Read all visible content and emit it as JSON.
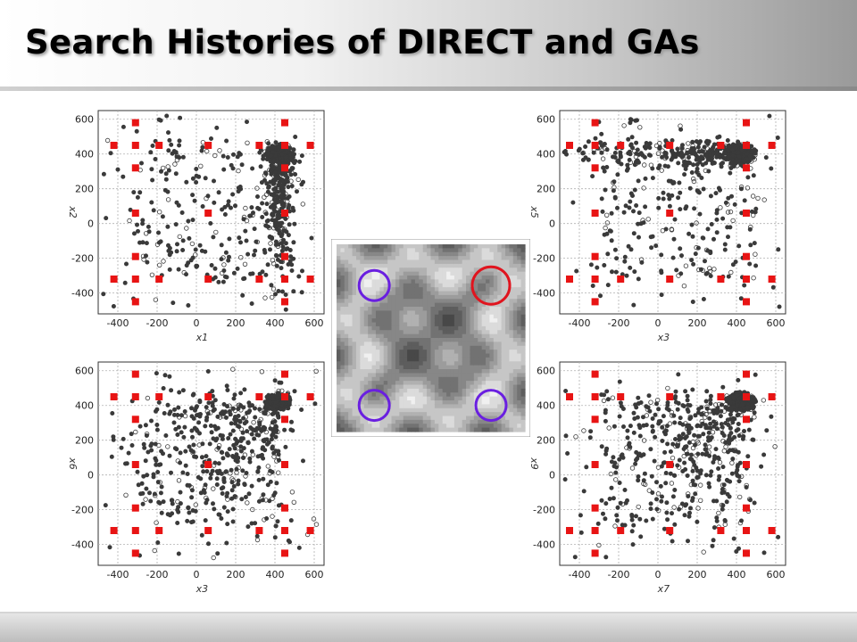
{
  "slide": {
    "title": "Search Histories of DIRECT and GAs"
  },
  "colors": {
    "direct_marker": "#e81414",
    "ga_marker": "#3a3a3a",
    "red_circle": "#e0141e",
    "blue_circle": "#6a1fe0"
  },
  "chart_data": [
    {
      "type": "scatter",
      "title": "",
      "xlabel": "x1",
      "ylabel": "x2",
      "xlim": [
        -500,
        650
      ],
      "ylim": [
        -520,
        650
      ],
      "xticks": [
        -400,
        -200,
        0,
        200,
        400,
        600
      ],
      "yticks": [
        -400,
        -200,
        0,
        200,
        400,
        600
      ],
      "grid": true,
      "direct_points": [
        [
          -420,
          450
        ],
        [
          -310,
          580
        ],
        [
          -310,
          450
        ],
        [
          -310,
          320
        ],
        [
          -310,
          60
        ],
        [
          -310,
          -190
        ],
        [
          -310,
          -320
        ],
        [
          -310,
          -450
        ],
        [
          -190,
          450
        ],
        [
          -190,
          -320
        ],
        [
          60,
          450
        ],
        [
          60,
          60
        ],
        [
          60,
          -320
        ],
        [
          320,
          450
        ],
        [
          320,
          -320
        ],
        [
          450,
          580
        ],
        [
          450,
          450
        ],
        [
          450,
          320
        ],
        [
          450,
          60
        ],
        [
          450,
          -190
        ],
        [
          450,
          -320
        ],
        [
          450,
          -450
        ],
        [
          580,
          450
        ],
        [
          580,
          -320
        ],
        [
          -420,
          -320
        ]
      ],
      "ga_cluster": {
        "center": [
          420,
          400
        ],
        "radius": 80
      },
      "ga_scatter_region": {
        "x": [
          -480,
          620
        ],
        "y": [
          -480,
          620
        ],
        "trend": "concentrated along x1 = 420 and near (420, 400)"
      }
    },
    {
      "type": "scatter",
      "title": "",
      "xlabel": "x3",
      "ylabel": "x5",
      "xlim": [
        -500,
        650
      ],
      "ylim": [
        -520,
        650
      ],
      "xticks": [
        -400,
        -200,
        0,
        200,
        400,
        600
      ],
      "yticks": [
        -400,
        -200,
        0,
        200,
        400,
        600
      ],
      "grid": true,
      "direct_points": [
        [
          -450,
          450
        ],
        [
          -450,
          -320
        ],
        [
          -320,
          580
        ],
        [
          -320,
          450
        ],
        [
          -320,
          320
        ],
        [
          -320,
          60
        ],
        [
          -320,
          -190
        ],
        [
          -320,
          -320
        ],
        [
          -320,
          -450
        ],
        [
          -190,
          450
        ],
        [
          -190,
          -320
        ],
        [
          60,
          450
        ],
        [
          60,
          60
        ],
        [
          60,
          -320
        ],
        [
          320,
          450
        ],
        [
          320,
          -320
        ],
        [
          450,
          580
        ],
        [
          450,
          450
        ],
        [
          450,
          320
        ],
        [
          450,
          60
        ],
        [
          450,
          -190
        ],
        [
          450,
          -320
        ],
        [
          450,
          -450
        ],
        [
          580,
          450
        ],
        [
          580,
          -320
        ]
      ],
      "ga_cluster": {
        "center": [
          420,
          400
        ],
        "radius": 80
      },
      "ga_scatter_region": {
        "x": [
          -480,
          620
        ],
        "y": [
          -480,
          620
        ],
        "trend": "concentrated along x5 = 450 and near (420, 400)"
      }
    },
    {
      "type": "scatter",
      "title": "",
      "xlabel": "x3",
      "ylabel": "x6",
      "xlim": [
        -500,
        650
      ],
      "ylim": [
        -520,
        650
      ],
      "xticks": [
        -400,
        -200,
        0,
        200,
        400,
        600
      ],
      "yticks": [
        -400,
        -200,
        0,
        200,
        400,
        600
      ],
      "grid": true,
      "direct_points": [
        [
          -420,
          450
        ],
        [
          -310,
          580
        ],
        [
          -310,
          450
        ],
        [
          -310,
          320
        ],
        [
          -310,
          60
        ],
        [
          -310,
          -190
        ],
        [
          -310,
          -320
        ],
        [
          -310,
          -450
        ],
        [
          -190,
          450
        ],
        [
          -190,
          -320
        ],
        [
          60,
          450
        ],
        [
          60,
          60
        ],
        [
          60,
          -320
        ],
        [
          320,
          450
        ],
        [
          320,
          -320
        ],
        [
          450,
          580
        ],
        [
          450,
          450
        ],
        [
          450,
          320
        ],
        [
          450,
          60
        ],
        [
          450,
          -190
        ],
        [
          450,
          -320
        ],
        [
          450,
          -450
        ],
        [
          580,
          450
        ],
        [
          580,
          -320
        ],
        [
          -420,
          -320
        ]
      ],
      "ga_cluster": {
        "center": [
          420,
          420
        ],
        "radius": 70
      },
      "ga_scatter_region": {
        "x": [
          -480,
          620
        ],
        "y": [
          -480,
          620
        ],
        "trend": "concentrated in upper right near (420, 420)"
      }
    },
    {
      "type": "scatter",
      "title": "",
      "xlabel": "x7",
      "ylabel": "x9",
      "xlim": [
        -500,
        650
      ],
      "ylim": [
        -520,
        650
      ],
      "xticks": [
        -400,
        -200,
        0,
        200,
        400,
        600
      ],
      "yticks": [
        -400,
        -200,
        0,
        200,
        400,
        600
      ],
      "grid": true,
      "direct_points": [
        [
          -450,
          450
        ],
        [
          -450,
          -320
        ],
        [
          -320,
          580
        ],
        [
          -320,
          450
        ],
        [
          -320,
          320
        ],
        [
          -320,
          60
        ],
        [
          -320,
          -190
        ],
        [
          -320,
          -320
        ],
        [
          -320,
          -450
        ],
        [
          -190,
          450
        ],
        [
          -190,
          -320
        ],
        [
          60,
          450
        ],
        [
          60,
          60
        ],
        [
          60,
          -320
        ],
        [
          320,
          450
        ],
        [
          320,
          -320
        ],
        [
          450,
          580
        ],
        [
          450,
          450
        ],
        [
          450,
          320
        ],
        [
          450,
          60
        ],
        [
          450,
          -190
        ],
        [
          450,
          -320
        ],
        [
          450,
          -450
        ],
        [
          580,
          450
        ],
        [
          580,
          -320
        ]
      ],
      "ga_cluster": {
        "center": [
          420,
          420
        ],
        "radius": 80
      },
      "ga_scatter_region": {
        "x": [
          -480,
          620
        ],
        "y": [
          -480,
          620
        ],
        "trend": "concentrated in upper right near (420, 420)"
      }
    }
  ],
  "contour_map": {
    "type": "contour",
    "levels": 10,
    "circled_optima": [
      {
        "color": "blue",
        "position": "upper-left"
      },
      {
        "color": "red",
        "position": "upper-right"
      },
      {
        "color": "blue",
        "position": "lower-left"
      },
      {
        "color": "blue",
        "position": "lower-right"
      }
    ]
  }
}
